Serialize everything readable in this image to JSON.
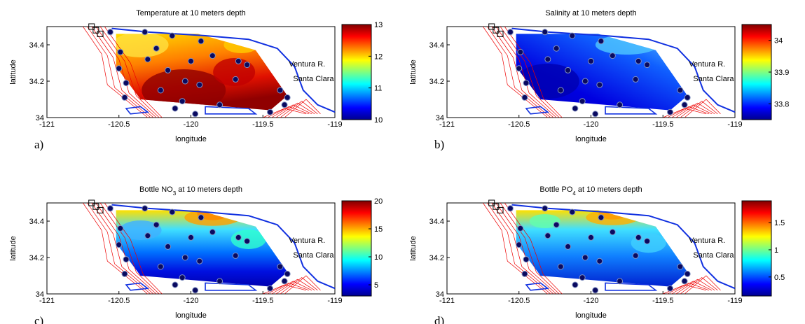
{
  "panels": [
    {
      "title": [
        "Temperature at 10 meters depth"
      ],
      "letter": "a)",
      "clim": [
        10,
        13
      ],
      "cticks": [
        10,
        11,
        12,
        13
      ]
    },
    {
      "title": [
        "Salinity at 10 meters depth"
      ],
      "letter": "b)",
      "clim": [
        33.75,
        34.05
      ],
      "cticks": [
        33.8,
        33.9,
        34
      ]
    },
    {
      "title": [
        "Bottle NO",
        "3",
        " at 10 meters depth"
      ],
      "letter": "c)",
      "clim": [
        3,
        20
      ],
      "cticks": [
        5,
        10,
        15,
        20
      ]
    },
    {
      "title": [
        "Bottle PO",
        "4",
        " at 10 meters depth"
      ],
      "letter": "d)",
      "clim": [
        0.15,
        1.9
      ],
      "cticks": [
        0.5,
        1,
        1.5
      ]
    }
  ],
  "xlabel": "longitude",
  "ylabel": "latitude",
  "xlim": [
    -121,
    -119
  ],
  "xticks": [
    -121,
    -120.5,
    -120,
    -119.5,
    -119
  ],
  "ylim": [
    34,
    34.5
  ],
  "yticks": [
    34,
    34.2,
    34.4
  ],
  "annotations": [
    "Ventura R.",
    "Santa Clara"
  ],
  "stations": {
    "lon": [
      -120.56,
      -120.32,
      -120.13,
      -119.93,
      -120.49,
      -120.24,
      -120.3,
      -120.0,
      -120.5,
      -120.16,
      -119.85,
      -119.67,
      -120.45,
      -120.21,
      -120.04,
      -119.94,
      -119.69,
      -119.61,
      -120.46,
      -120.06,
      -120.11,
      -119.97,
      -119.45,
      -119.35,
      -119.8,
      -119.38,
      -119.33
    ],
    "lat": [
      34.47,
      34.47,
      34.45,
      34.42,
      34.36,
      34.38,
      34.32,
      34.31,
      34.27,
      34.26,
      34.34,
      34.31,
      34.19,
      34.15,
      34.2,
      34.18,
      34.21,
      34.29,
      34.11,
      34.09,
      34.05,
      34.02,
      34.03,
      34.07,
      34.07,
      34.15,
      34.11
    ]
  }
}
